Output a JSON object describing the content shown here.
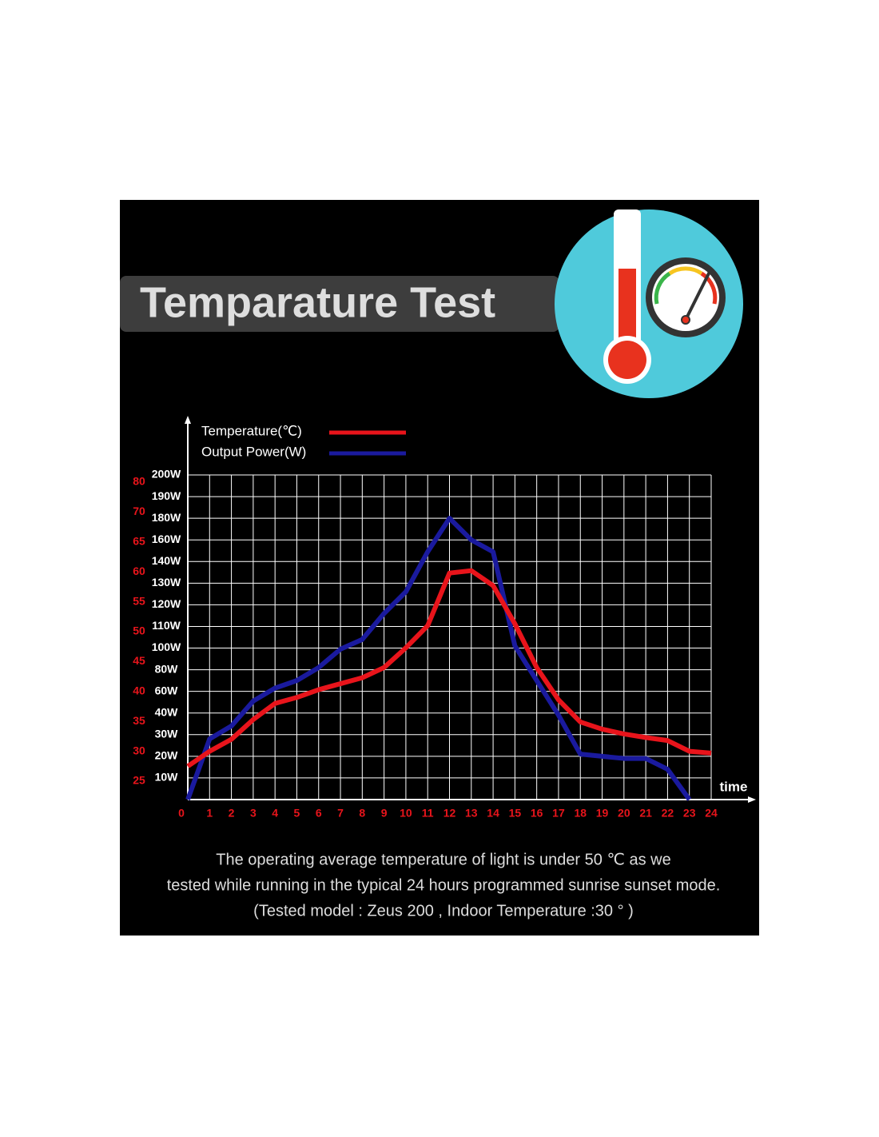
{
  "chart_data": {
    "type": "line",
    "title": "Temparature Test",
    "x_label": "time",
    "notes": [
      "The operating average temperature of light is under 50 ℃ as we",
      "tested while running in the typical 24 hours programmed sunrise sunset mode.",
      "(Tested model : Zeus 200 , Indoor Temperature :30 °  )"
    ],
    "x": [
      0,
      1,
      2,
      3,
      4,
      5,
      6,
      7,
      8,
      9,
      10,
      11,
      12,
      13,
      14,
      15,
      16,
      17,
      18,
      19,
      20,
      21,
      22,
      23,
      24
    ],
    "xlim": [
      0,
      24
    ],
    "xticks": [
      0,
      1,
      2,
      3,
      4,
      5,
      6,
      7,
      8,
      9,
      10,
      11,
      12,
      13,
      14,
      15,
      16,
      17,
      18,
      19,
      20,
      21,
      22,
      23,
      24
    ],
    "ylim": [
      0,
      200
    ],
    "yticks": [
      {
        "value": 10,
        "label": "10W"
      },
      {
        "value": 20,
        "label": "20W"
      },
      {
        "value": 30,
        "label": "30W"
      },
      {
        "value": 40,
        "label": "40W"
      },
      {
        "value": 60,
        "label": "60W"
      },
      {
        "value": 80,
        "label": "80W"
      },
      {
        "value": 100,
        "label": "100W"
      },
      {
        "value": 110,
        "label": "110W"
      },
      {
        "value": 120,
        "label": "120W"
      },
      {
        "value": 130,
        "label": "130W"
      },
      {
        "value": 140,
        "label": "140W"
      },
      {
        "value": 160,
        "label": "160W"
      },
      {
        "value": 180,
        "label": "180W"
      },
      {
        "value": 190,
        "label": "190W"
      },
      {
        "value": 200,
        "label": "200W"
      }
    ],
    "y2lim": [
      25,
      80
    ],
    "y2ticks": [
      25,
      30,
      35,
      40,
      45,
      50,
      55,
      60,
      65,
      70,
      80
    ],
    "grid": true,
    "series": [
      {
        "name": "Temperature(℃)",
        "color": "#e8141b",
        "axis": "y2",
        "values": [
          27.5,
          30,
          32,
          35.3,
          38,
          39,
          40.3,
          41.3,
          42.3,
          44,
          47.3,
          51,
          59.8,
          60.2,
          57.7,
          51.3,
          44,
          38.6,
          34.9,
          33.7,
          32.9,
          32.3,
          31.8,
          30,
          29.7
        ]
      },
      {
        "name": "Output Power(W)",
        "color": "#1a1a9e",
        "values": [
          0,
          28,
          34,
          51,
          63,
          70,
          82,
          99,
          104,
          116,
          126,
          149,
          180,
          160,
          149,
          101,
          70,
          39,
          21,
          20,
          19,
          19,
          14,
          0,
          null
        ]
      }
    ]
  }
}
